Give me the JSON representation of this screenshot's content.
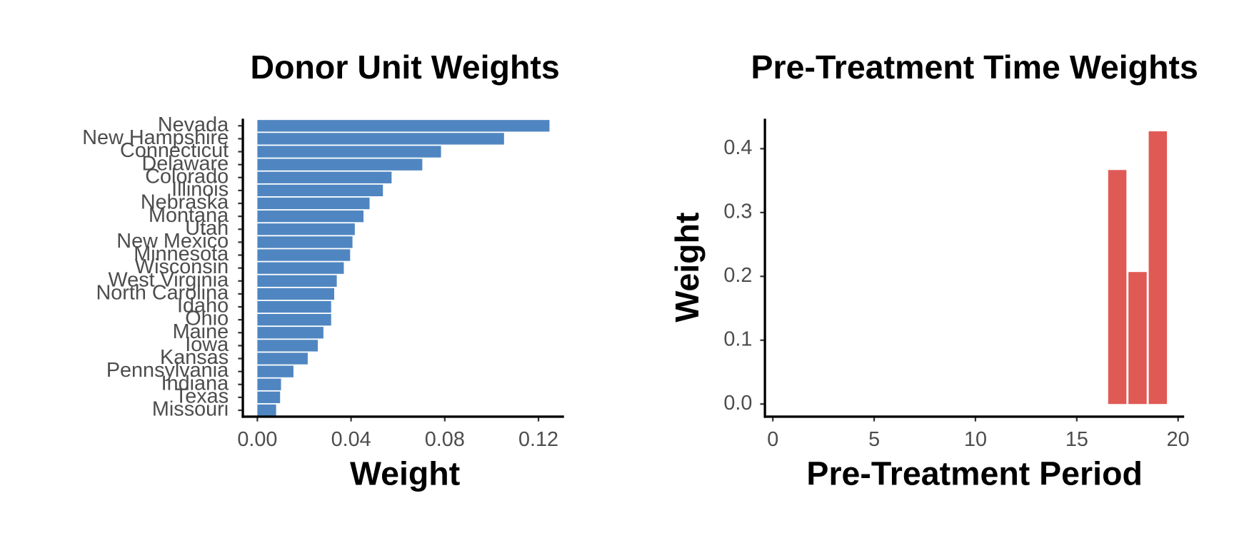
{
  "chart_data": [
    {
      "type": "barh",
      "title": "Donor Unit Weights",
      "xlabel": "Weight",
      "color": "#4f86c1",
      "categories": [
        "Nevada",
        "New Hampshire",
        "Connecticut",
        "Delaware",
        "Colorado",
        "Illinois",
        "Nebraska",
        "Montana",
        "Utah",
        "New Mexico",
        "Minnesota",
        "Wisconsin",
        "West Virginia",
        "North Carolina",
        "Idaho",
        "Ohio",
        "Maine",
        "Iowa",
        "Kansas",
        "Pennsylvania",
        "Indiana",
        "Texas",
        "Missouri"
      ],
      "values": [
        0.1247,
        0.1053,
        0.0784,
        0.0704,
        0.0573,
        0.0536,
        0.0479,
        0.0453,
        0.0416,
        0.0406,
        0.0396,
        0.0369,
        0.0339,
        0.0328,
        0.0315,
        0.0315,
        0.0282,
        0.0258,
        0.0215,
        0.0154,
        0.0101,
        0.0097,
        0.008
      ],
      "xlim": [
        -0.0062,
        0.1309
      ],
      "xticks": [
        {
          "value": 0,
          "label": "0.00"
        },
        {
          "value": 0.04,
          "label": "0.04"
        },
        {
          "value": 0.08,
          "label": "0.08"
        },
        {
          "value": 0.12,
          "label": "0.12"
        }
      ]
    },
    {
      "type": "bar",
      "title": "Pre-Treatment Time Weights",
      "xlabel": "Pre-Treatment Period",
      "ylabel": "Weight",
      "color": "#e05a55",
      "x": [
        1,
        2,
        3,
        4,
        5,
        6,
        7,
        8,
        9,
        10,
        11,
        12,
        13,
        14,
        15,
        16,
        17,
        18,
        19
      ],
      "values": [
        0,
        0,
        0,
        0,
        0,
        0,
        0,
        0,
        0,
        0,
        0,
        0,
        0,
        0,
        0,
        0,
        0.3666,
        0.2068,
        0.4272
      ],
      "xlim": [
        -0.39,
        20.3
      ],
      "ylim": [
        -0.0198,
        0.447
      ],
      "xticks": [
        0,
        5,
        10,
        15,
        20
      ],
      "yticks": [
        {
          "value": 0,
          "label": "0.0"
        },
        {
          "value": 0.1,
          "label": "0.1"
        },
        {
          "value": 0.2,
          "label": "0.2"
        },
        {
          "value": 0.3,
          "label": "0.3"
        },
        {
          "value": 0.4,
          "label": "0.4"
        }
      ]
    }
  ]
}
